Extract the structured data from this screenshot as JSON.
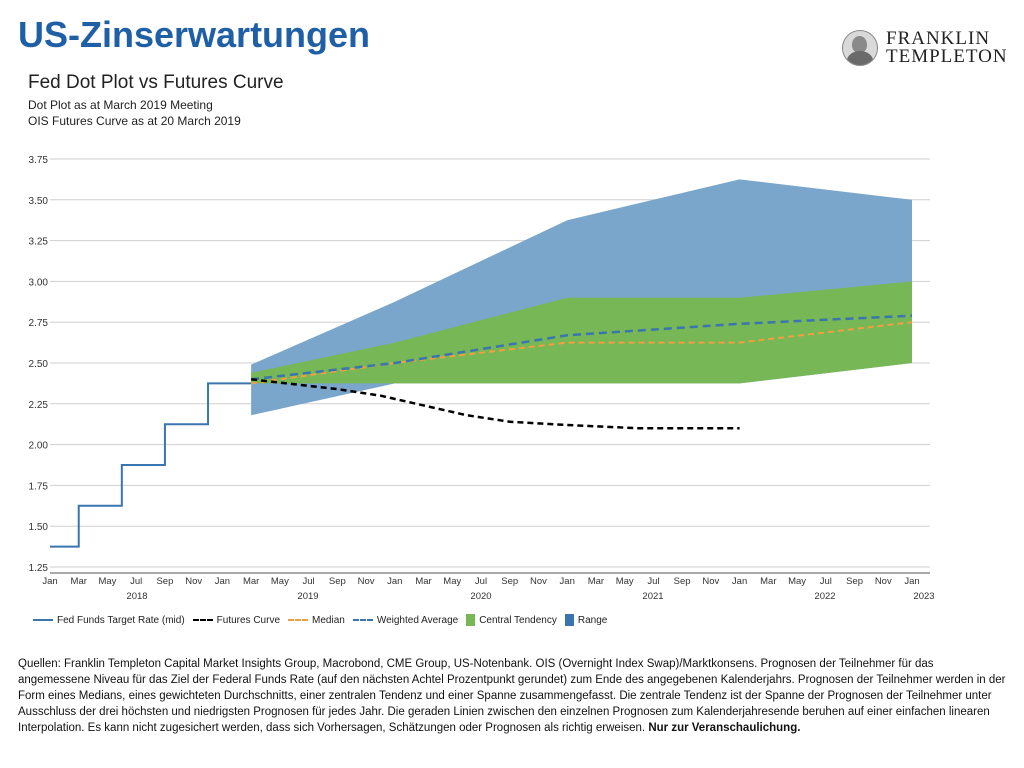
{
  "header": {
    "title": "US-Zinserwartungen",
    "logo_line1": "FRANKLIN",
    "logo_line2": "TEMPLETON"
  },
  "chart_data": {
    "type": "line",
    "title": "Fed Dot Plot vs Futures Curve",
    "subtitle_1": "Dot Plot as at March 2019  Meeting",
    "subtitle_2": "OIS Futures Curve as at 20 March 2019",
    "ylim": [
      1.25,
      3.75
    ],
    "yticks": [
      "1.25",
      "1.50",
      "1.75",
      "2.00",
      "2.25",
      "2.50",
      "2.75",
      "3.00",
      "3.25",
      "3.50",
      "3.75"
    ],
    "x_month_labels": [
      "Jan",
      "Mar",
      "May",
      "Jul",
      "Sep",
      "Nov",
      "Jan",
      "Mar",
      "May",
      "Jul",
      "Sep",
      "Nov",
      "Jan",
      "Mar",
      "May",
      "Jul",
      "Sep",
      "Nov",
      "Jan",
      "Mar",
      "May",
      "Jul",
      "Sep",
      "Nov",
      "Jan",
      "Mar",
      "May",
      "Jul",
      "Sep",
      "Nov",
      "Jan"
    ],
    "x_year_labels": [
      "2018",
      "2019",
      "2020",
      "2021",
      "2022",
      "2023"
    ],
    "grid": true,
    "legend_position": "bottom",
    "colors": {
      "fed_funds": "#3a75b0",
      "futures": "#000000",
      "median": "#f0a040",
      "weighted": "#3a75b0",
      "central": "#77b755",
      "range": "#7aa6cc"
    },
    "series": [
      {
        "name": "Fed Funds Target Rate (mid)",
        "style": "step",
        "points": [
          [
            "2018-01",
            1.375
          ],
          [
            "2018-03",
            1.375
          ],
          [
            "2018-03",
            1.625
          ],
          [
            "2018-06",
            1.625
          ],
          [
            "2018-06",
            1.875
          ],
          [
            "2018-09",
            1.875
          ],
          [
            "2018-09",
            2.125
          ],
          [
            "2018-12",
            2.125
          ],
          [
            "2018-12",
            2.375
          ],
          [
            "2019-03",
            2.375
          ]
        ]
      },
      {
        "name": "Futures Curve",
        "style": "dashed",
        "points": [
          [
            "2019-03",
            2.4
          ],
          [
            "2019-06",
            2.37
          ],
          [
            "2019-09",
            2.34
          ],
          [
            "2019-12",
            2.3
          ],
          [
            "2020-03",
            2.24
          ],
          [
            "2020-06",
            2.18
          ],
          [
            "2020-09",
            2.14
          ],
          [
            "2021-01",
            2.12
          ],
          [
            "2021-06",
            2.1
          ],
          [
            "2022-01",
            2.1
          ]
        ]
      },
      {
        "name": "Median",
        "style": "dashed",
        "points": [
          [
            "2019-03",
            2.375
          ],
          [
            "2020-01",
            2.5
          ],
          [
            "2021-01",
            2.625
          ],
          [
            "2022-01",
            2.625
          ],
          [
            "2023-01",
            2.75
          ]
        ]
      },
      {
        "name": "Weighted Average",
        "style": "dashed",
        "points": [
          [
            "2019-03",
            2.4
          ],
          [
            "2020-01",
            2.5
          ],
          [
            "2021-01",
            2.67
          ],
          [
            "2022-01",
            2.74
          ],
          [
            "2023-01",
            2.79
          ]
        ]
      },
      {
        "name": "Central Tendency",
        "style": "band",
        "lower": [
          [
            "2019-03",
            2.375
          ],
          [
            "2020-01",
            2.375
          ],
          [
            "2021-01",
            2.375
          ],
          [
            "2022-01",
            2.375
          ],
          [
            "2023-01",
            2.5
          ]
        ],
        "upper": [
          [
            "2019-03",
            2.44
          ],
          [
            "2020-01",
            2.625
          ],
          [
            "2021-01",
            2.9
          ],
          [
            "2022-01",
            2.9
          ],
          [
            "2023-01",
            3.0
          ]
        ]
      },
      {
        "name": "Range",
        "style": "band",
        "lower": [
          [
            "2019-03",
            2.18
          ],
          [
            "2020-01",
            2.375
          ],
          [
            "2021-01",
            2.375
          ],
          [
            "2022-01",
            2.375
          ],
          [
            "2023-01",
            2.5
          ]
        ],
        "upper": [
          [
            "2019-03",
            2.49
          ],
          [
            "2020-01",
            2.875
          ],
          [
            "2021-01",
            3.375
          ],
          [
            "2022-01",
            3.625
          ],
          [
            "2023-01",
            3.5
          ]
        ]
      }
    ]
  },
  "footnote": {
    "text": "Quellen: Franklin Templeton Capital Market Insights Group, Macrobond, CME Group, US-Notenbank. OIS (Overnight Index Swap)/Marktkonsens. Prognosen der Teilnehmer für das angemessene Niveau für das Ziel der Federal Funds Rate (auf den nächsten Achtel Prozentpunkt gerundet) zum Ende des angegebenen Kalenderjahrs. Prognosen der Teilnehmer werden in der Form eines Medians, eines gewichteten Durchschnitts, einer zentralen Tendenz und einer Spanne zusammengefasst. Die zentrale Tendenz ist der Spanne der Prognosen der Teilnehmer unter Ausschluss der drei höchsten und niedrigsten Prognosen für jedes Jahr. Die geraden Linien zwischen den einzelnen Prognosen zum Kalenderjahresende beruhen auf einer einfachen linearen Interpolation. Es kann nicht zugesichert werden, dass sich Vorhersagen, Schätzungen oder Prognosen als richtig erweisen.",
    "bold": "Nur zur Veranschaulichung."
  }
}
